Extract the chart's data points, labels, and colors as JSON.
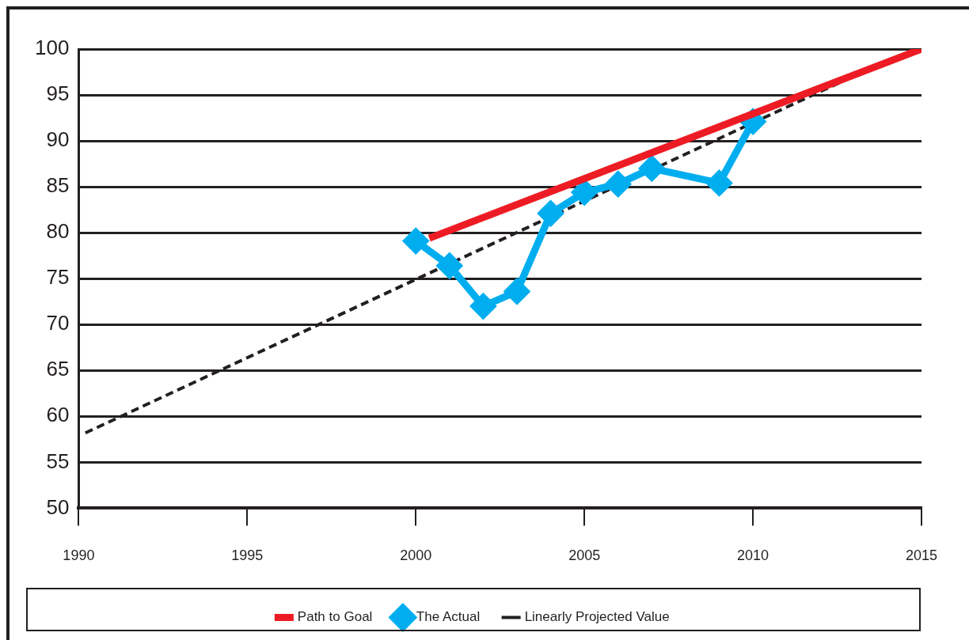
{
  "chart_data": {
    "type": "line",
    "xlim": [
      1990,
      2015
    ],
    "xticks": [
      1990,
      1995,
      2000,
      2005,
      2010,
      2015
    ],
    "ylim": [
      50,
      100
    ],
    "yticks": [
      50,
      55,
      60,
      65,
      70,
      75,
      80,
      85,
      90,
      95,
      100
    ],
    "grid": "y",
    "legend": "bottom",
    "series": [
      {
        "name": "Path to Goal",
        "color": "#ed1c24",
        "x": [
          2000.4,
          2015
        ],
        "values": [
          79.4,
          100
        ],
        "marker": "none",
        "line_style": "solid"
      },
      {
        "name": "The Actual",
        "color": "#00aeef",
        "x": [
          2000,
          2001,
          2002,
          2003,
          2004,
          2005,
          2006,
          2007,
          2009,
          2010
        ],
        "values": [
          79.1,
          76.4,
          72.0,
          73.6,
          82.1,
          84.4,
          85.3,
          87.0,
          85.4,
          92.1
        ],
        "marker": "diamond",
        "line_style": "solid"
      },
      {
        "name": "Linearly Projected Value",
        "color": "#231f20",
        "x": [
          1990.2,
          2012.6
        ],
        "values": [
          58.2,
          96.4
        ],
        "marker": "none",
        "line_style": "dashed"
      }
    ]
  }
}
